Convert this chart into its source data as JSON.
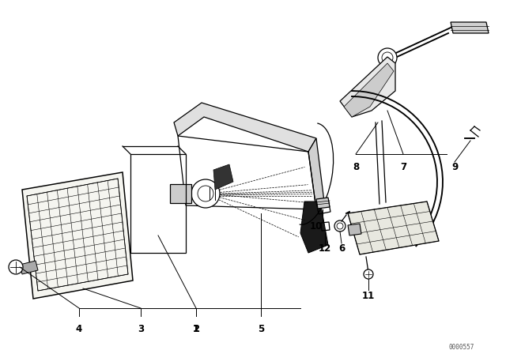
{
  "background_color": "#ffffff",
  "line_color": "#000000",
  "figure_width": 6.4,
  "figure_height": 4.48,
  "dpi": 100,
  "watermark": "0000557"
}
